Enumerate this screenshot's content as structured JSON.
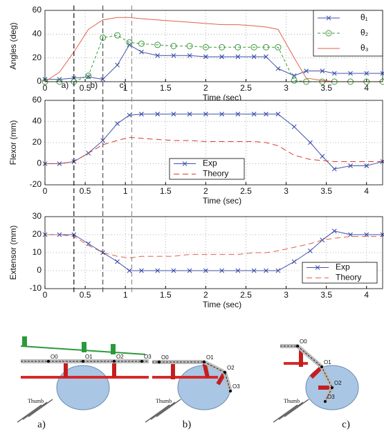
{
  "chart_data": [
    {
      "type": "line",
      "ylabel": "Angles (deg)",
      "xlabel": "Time (sec)",
      "xlim": [
        0,
        4.2
      ],
      "xticks": [
        0,
        0.5,
        1,
        1.5,
        2,
        2.5,
        3,
        3.5,
        4
      ],
      "ylim": [
        0,
        60
      ],
      "yticks": [
        0,
        20,
        40,
        60
      ],
      "grid": true,
      "legend": "upper right",
      "x": [
        0,
        0.18,
        0.36,
        0.54,
        0.72,
        0.9,
        1.05,
        1.2,
        1.4,
        1.6,
        1.8,
        2.0,
        2.2,
        2.4,
        2.6,
        2.75,
        2.9,
        3.1,
        3.25,
        3.45,
        3.6,
        3.8,
        4.0,
        4.2
      ],
      "series": [
        {
          "name": "θ₁",
          "color": "#3f4fa8",
          "marker": "x",
          "dash": "none",
          "values": [
            2,
            2,
            3,
            4,
            2,
            14,
            31,
            25,
            22,
            22,
            22,
            21,
            21,
            21,
            21,
            21,
            11,
            5,
            9,
            9,
            7,
            7,
            7,
            7
          ]
        },
        {
          "name": "θ₂",
          "color": "#3a9a3a",
          "marker": "o",
          "dash": "4 3",
          "values": [
            0,
            0,
            0,
            5,
            37,
            39,
            33,
            32,
            31,
            30,
            30,
            29,
            29,
            29,
            29,
            29,
            29,
            1,
            0,
            0,
            0,
            0,
            0,
            0
          ]
        },
        {
          "name": "θ₃",
          "color": "#e0604a",
          "marker": "none",
          "dash": "none",
          "values": [
            0,
            8,
            25,
            44,
            52,
            54,
            54,
            53,
            52,
            51,
            50,
            49,
            48,
            48,
            47,
            46,
            44,
            20,
            3,
            1,
            0,
            0,
            0,
            0
          ]
        }
      ]
    },
    {
      "type": "line",
      "ylabel": "Flexor (mm)",
      "xlabel": "Time (sec)",
      "xlim": [
        0,
        4.2
      ],
      "xticks": [
        0,
        0.5,
        1,
        1.5,
        2,
        2.5,
        3,
        3.5,
        4
      ],
      "ylim": [
        -20,
        60
      ],
      "yticks": [
        -20,
        0,
        20,
        40,
        60
      ],
      "grid": true,
      "legend": "lower center",
      "x": [
        0,
        0.18,
        0.36,
        0.54,
        0.72,
        0.9,
        1.05,
        1.2,
        1.4,
        1.6,
        1.8,
        2.0,
        2.2,
        2.4,
        2.6,
        2.75,
        2.9,
        3.1,
        3.3,
        3.45,
        3.6,
        3.8,
        4.0,
        4.2
      ],
      "series": [
        {
          "name": "Exp",
          "color": "#3f4fa8",
          "marker": "x",
          "dash": "none",
          "values": [
            0,
            0,
            2,
            10,
            22,
            38,
            46,
            47,
            47,
            47,
            47,
            47,
            47,
            47,
            47,
            47,
            47,
            35,
            20,
            7,
            -5,
            -2,
            -2,
            2
          ]
        },
        {
          "name": "Theory",
          "color": "#d83a2a",
          "marker": "none",
          "dash": "8 5",
          "values": [
            0,
            0,
            2,
            10,
            18,
            22,
            25,
            24,
            23,
            22,
            22,
            21,
            21,
            21,
            21,
            20,
            17,
            8,
            4,
            3,
            2,
            2,
            2,
            2
          ]
        }
      ]
    },
    {
      "type": "line",
      "ylabel": "Extensor (mm)",
      "xlabel": "Time (sec)",
      "xlim": [
        0,
        4.2
      ],
      "xticks": [
        0,
        0.5,
        1,
        1.5,
        2,
        2.5,
        3,
        3.5,
        4
      ],
      "ylim": [
        -10,
        30
      ],
      "yticks": [
        -10,
        0,
        10,
        20,
        30
      ],
      "grid": true,
      "legend": "lower right",
      "x": [
        0,
        0.18,
        0.36,
        0.54,
        0.72,
        0.9,
        1.05,
        1.2,
        1.4,
        1.6,
        1.8,
        2.0,
        2.2,
        2.4,
        2.6,
        2.75,
        2.9,
        3.1,
        3.3,
        3.45,
        3.6,
        3.8,
        4.0,
        4.2
      ],
      "series": [
        {
          "name": "Exp",
          "color": "#3f4fa8",
          "marker": "x",
          "dash": "none",
          "values": [
            20,
            20,
            20,
            15,
            10,
            5,
            0,
            0,
            0,
            0,
            0,
            0,
            0,
            0,
            0,
            0,
            0,
            5,
            11,
            17,
            22,
            20,
            20,
            20
          ]
        },
        {
          "name": "Theory",
          "color": "#e0604a",
          "marker": "none",
          "dash": "8 5",
          "values": [
            20,
            20,
            19,
            14,
            10,
            8,
            7,
            8,
            8,
            8,
            9,
            9,
            9,
            9,
            10,
            10,
            11,
            13,
            15,
            17,
            18,
            19,
            19,
            19
          ]
        }
      ]
    }
  ],
  "phases": {
    "lines": [
      0.36,
      0.72,
      1.08
    ],
    "labels": [
      "a)",
      "b)",
      "c)"
    ]
  },
  "diagram": {
    "thumb": "Thumb",
    "joints": [
      "O0",
      "O1",
      "O2",
      "O3"
    ],
    "captions": [
      "a)",
      "b)",
      "c)"
    ]
  }
}
